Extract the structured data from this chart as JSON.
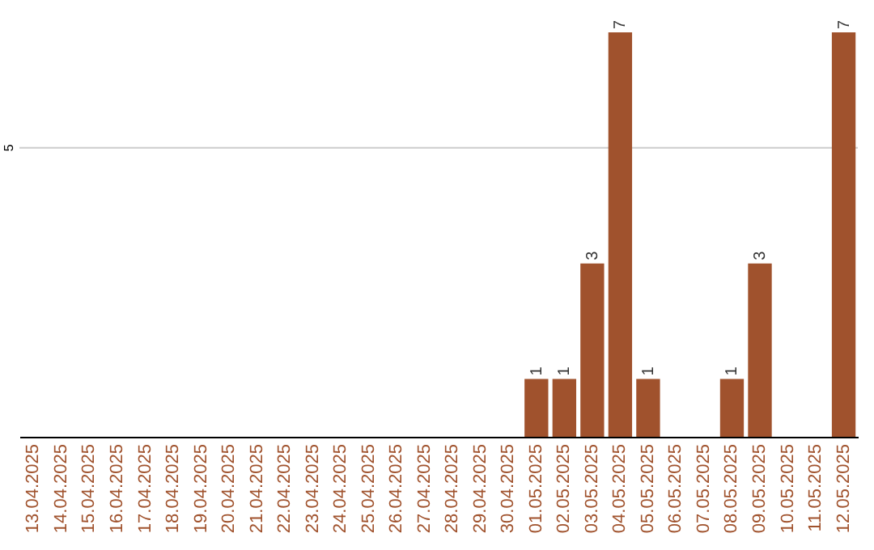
{
  "chart_data": {
    "type": "bar",
    "categories": [
      "13.04.2025",
      "14.04.2025",
      "15.04.2025",
      "16.04.2025",
      "17.04.2025",
      "18.04.2025",
      "19.04.2025",
      "20.04.2025",
      "21.04.2025",
      "22.04.2025",
      "23.04.2025",
      "24.04.2025",
      "25.04.2025",
      "26.04.2025",
      "27.04.2025",
      "28.04.2025",
      "29.04.2025",
      "30.04.2025",
      "01.05.2025",
      "02.05.2025",
      "03.05.2025",
      "04.05.2025",
      "05.05.2025",
      "06.05.2025",
      "07.05.2025",
      "08.05.2025",
      "09.05.2025",
      "10.05.2025",
      "11.05.2025",
      "12.05.2025"
    ],
    "values": [
      null,
      null,
      null,
      null,
      null,
      null,
      null,
      null,
      null,
      null,
      null,
      null,
      null,
      null,
      null,
      null,
      null,
      null,
      1,
      1,
      3,
      7,
      1,
      null,
      null,
      1,
      3,
      null,
      null,
      7
    ],
    "value_labels": [
      null,
      null,
      null,
      null,
      null,
      null,
      null,
      null,
      null,
      null,
      null,
      null,
      null,
      null,
      null,
      null,
      null,
      null,
      "1",
      "1",
      "3",
      "7",
      "1",
      null,
      null,
      "1",
      "3",
      null,
      null,
      "7"
    ],
    "color": "#a0522d",
    "ylim": [
      0,
      7
    ],
    "ref_lines": [
      {
        "axis": "y",
        "value": 5,
        "label": "5",
        "color": "#cccccc"
      }
    ]
  }
}
